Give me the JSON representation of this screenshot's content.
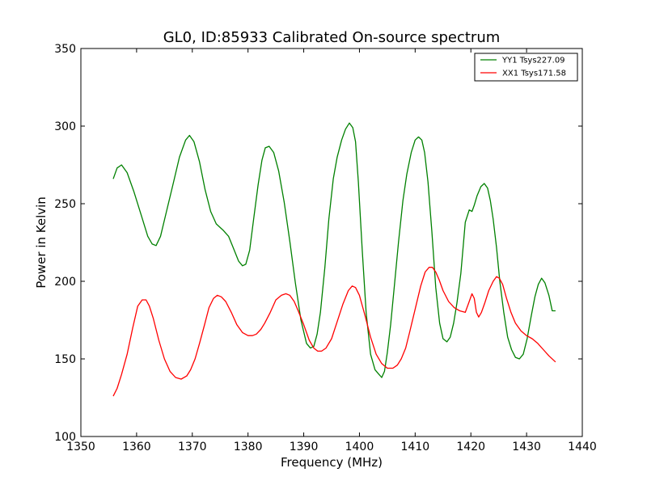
{
  "chart_data": {
    "type": "line",
    "title": "GL0, ID:85933 Calibrated On-source spectrum",
    "xlabel": "Frequency (MHz)",
    "ylabel": "Power in Kelvin",
    "xlim": [
      1350,
      1440
    ],
    "ylim": [
      100,
      350
    ],
    "xticks": [
      1350,
      1360,
      1370,
      1380,
      1390,
      1400,
      1410,
      1420,
      1430,
      1440
    ],
    "yticks": [
      100,
      150,
      200,
      250,
      300,
      350
    ],
    "grid": false,
    "legend_position": "top-right",
    "series": [
      {
        "name": "YY1 Tsys227.09",
        "color": "#008000",
        "x": [
          1355.8,
          1356.5,
          1357.3,
          1358.3,
          1359.5,
          1360.8,
          1362.0,
          1362.8,
          1363.5,
          1364.3,
          1365.3,
          1366.5,
          1367.7,
          1368.8,
          1369.5,
          1370.3,
          1371.3,
          1372.3,
          1373.3,
          1374.3,
          1375.5,
          1376.5,
          1377.3,
          1378.3,
          1379.0,
          1379.6,
          1380.3,
          1381.0,
          1381.8,
          1382.5,
          1383.1,
          1383.8,
          1384.6,
          1385.5,
          1386.5,
          1387.5,
          1388.5,
          1389.5,
          1390.5,
          1391.2,
          1391.8,
          1392.4,
          1393.0,
          1393.8,
          1394.5,
          1395.3,
          1396.0,
          1396.8,
          1397.5,
          1398.2,
          1398.8,
          1399.3,
          1399.8,
          1400.5,
          1401.2,
          1402.0,
          1402.8,
          1403.5,
          1404.0,
          1404.5,
          1405.0,
          1405.6,
          1406.3,
          1407.0,
          1407.8,
          1408.5,
          1409.3,
          1410.0,
          1410.6,
          1411.2,
          1411.7,
          1412.3,
          1413.0,
          1413.7,
          1414.4,
          1415.0,
          1415.7,
          1416.3,
          1416.9,
          1417.5,
          1418.2,
          1419.0,
          1419.7,
          1420.2,
          1420.6,
          1421.1,
          1421.8,
          1422.4,
          1423.0,
          1423.5,
          1424.0,
          1424.6,
          1425.2,
          1425.9,
          1426.6,
          1427.3,
          1428.0,
          1428.7,
          1429.4,
          1430.1,
          1430.8,
          1431.5,
          1432.1,
          1432.7,
          1433.3,
          1434.0,
          1434.6,
          1435.2
        ],
        "y": [
          266,
          273,
          275,
          270,
          258,
          243,
          229,
          224,
          223,
          229,
          244,
          262,
          280,
          291,
          294,
          290,
          277,
          259,
          245,
          237,
          233,
          229,
          222,
          213,
          210,
          211,
          220,
          240,
          262,
          278,
          286,
          287,
          283,
          271,
          251,
          226,
          199,
          175,
          160,
          157,
          158,
          166,
          180,
          209,
          240,
          266,
          280,
          291,
          298,
          302,
          299,
          290,
          264,
          220,
          180,
          153,
          143,
          140,
          138,
          142,
          154,
          172,
          198,
          225,
          252,
          269,
          283,
          291,
          293,
          291,
          283,
          264,
          232,
          196,
          173,
          163,
          161,
          164,
          173,
          186,
          205,
          238,
          246,
          245,
          249,
          255,
          261,
          263,
          260,
          252,
          240,
          222,
          200,
          180,
          164,
          156,
          151,
          150,
          153,
          163,
          177,
          190,
          198,
          202,
          199,
          191,
          181,
          181
        ]
      },
      {
        "name": "XX1 Tsys171.58",
        "color": "#ff0000",
        "x": [
          1355.8,
          1356.5,
          1357.3,
          1358.3,
          1359.3,
          1360.2,
          1361.0,
          1361.7,
          1362.3,
          1363.0,
          1364.0,
          1365.0,
          1366.0,
          1367.0,
          1368.0,
          1369.0,
          1369.7,
          1370.5,
          1371.3,
          1372.2,
          1373.0,
          1373.8,
          1374.5,
          1375.2,
          1376.0,
          1377.0,
          1378.0,
          1379.0,
          1380.0,
          1380.8,
          1381.5,
          1382.3,
          1383.0,
          1384.0,
          1385.0,
          1386.0,
          1386.8,
          1387.5,
          1388.3,
          1389.0,
          1390.0,
          1391.0,
          1391.8,
          1392.5,
          1393.2,
          1394.0,
          1395.0,
          1396.0,
          1397.0,
          1398.0,
          1398.7,
          1399.3,
          1400.0,
          1401.0,
          1402.0,
          1403.0,
          1404.0,
          1405.0,
          1406.0,
          1406.8,
          1407.5,
          1408.3,
          1409.0,
          1410.0,
          1411.0,
          1411.8,
          1412.5,
          1413.1,
          1413.7,
          1414.3,
          1415.0,
          1416.0,
          1417.0,
          1418.0,
          1419.0,
          1419.6,
          1420.2,
          1420.6,
          1421.0,
          1421.4,
          1421.9,
          1422.5,
          1423.2,
          1424.0,
          1424.6,
          1425.1,
          1425.7,
          1426.4,
          1427.2,
          1428.0,
          1429.0,
          1430.0,
          1431.0,
          1432.0,
          1433.0,
          1434.0,
          1435.2
        ],
        "y": [
          126,
          131,
          140,
          153,
          170,
          184,
          188,
          188,
          184,
          176,
          162,
          150,
          142,
          138,
          137,
          139,
          143,
          150,
          160,
          172,
          183,
          189,
          191,
          190,
          187,
          180,
          172,
          167,
          165,
          165,
          166,
          169,
          173,
          180,
          188,
          191,
          192,
          191,
          187,
          181,
          172,
          162,
          157,
          155,
          155,
          157,
          163,
          174,
          185,
          194,
          197,
          196,
          191,
          178,
          164,
          153,
          147,
          144,
          144,
          146,
          150,
          157,
          167,
          182,
          197,
          206,
          209,
          209,
          206,
          201,
          194,
          187,
          183,
          181,
          180,
          186,
          192,
          189,
          180,
          177,
          180,
          186,
          194,
          200,
          203,
          202,
          198,
          189,
          180,
          173,
          168,
          165,
          163,
          160,
          156,
          152,
          148
        ]
      }
    ]
  }
}
